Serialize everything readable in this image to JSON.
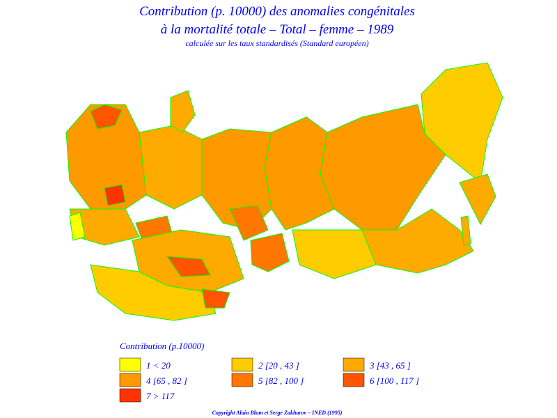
{
  "header": {
    "title_line1": "Contribution (p. 10000) des anomalies congénitales",
    "title_line2": "à la mortalité totale – Total – femme – 1989",
    "subtitle": "calculée sur les taux standardisés (Standard européen)"
  },
  "legend": {
    "title": "Contribution  (p.10000)",
    "items": [
      {
        "label": "1  <  20",
        "color": "#ffff00"
      },
      {
        "label": "2  [20  ,  43  ]",
        "color": "#ffcc00"
      },
      {
        "label": "3  [43  ,  65  ]",
        "color": "#ffaa00"
      },
      {
        "label": "4  [65  ,  82  ]",
        "color": "#ff9900"
      },
      {
        "label": "5  [82  ,  100  ]",
        "color": "#ff7700"
      },
      {
        "label": "6  [100  ,  117  ]",
        "color": "#ff5500"
      },
      {
        "label": "7  >  117",
        "color": "#ff3300"
      }
    ]
  },
  "footer": {
    "copyright": "Copyright  Alain  Blum  et  Serge  Zakharov  –  INED  (1995)"
  }
}
